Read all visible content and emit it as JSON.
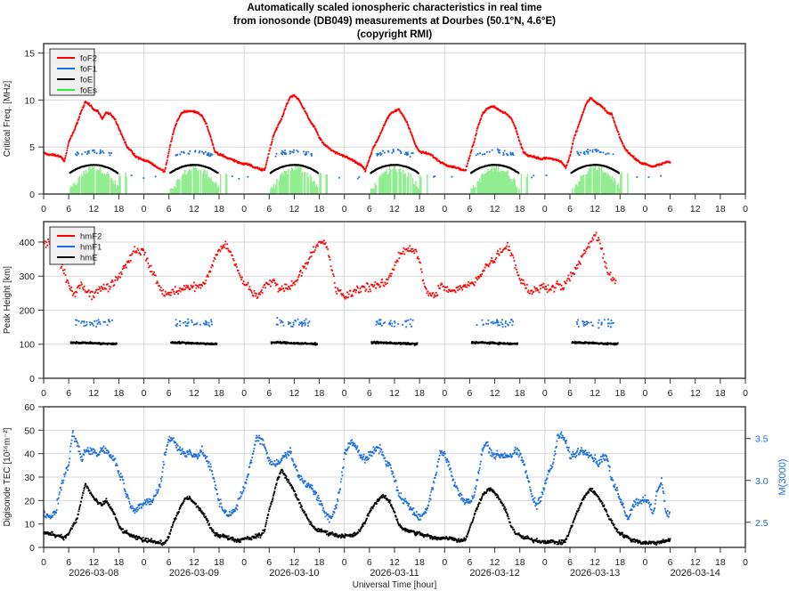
{
  "title": {
    "line1": "Automatically scaled ionospheric characteristics in real time",
    "line2": "from ionosonde (DB049) measurements at Dourbes (50.1°N, 4.6°E)",
    "line3": "(copyright RMI)"
  },
  "chart_data": [
    {
      "type": "scatter",
      "panel": "critical-frequency",
      "ylabel": "Critical Freq. [MHz]",
      "ylim": [
        0,
        16
      ],
      "yticks": [
        0,
        5,
        10,
        15
      ],
      "grid": true,
      "legend": "top-left",
      "xticks": [
        "0",
        "6",
        "12",
        "18",
        "0",
        "6",
        "12",
        "18",
        "0",
        "6",
        "12",
        "18",
        "0",
        "6",
        "12",
        "18",
        "0",
        "6",
        "12",
        "18",
        "0",
        "6",
        "12",
        "18",
        "0",
        "6",
        "12",
        "18",
        "0"
      ],
      "x_unit": "hour of day",
      "days": 7,
      "series": [
        {
          "name": "foF2",
          "color": "#ff0000",
          "kind": "points",
          "hourly": [
            [
              4.4,
              4.2,
              4.2,
              4.1,
              4.0,
              3.5,
              5.5,
              6.5,
              7.5,
              8.8,
              9.8,
              9.5,
              9.0,
              8.8,
              8.0,
              8.7,
              8.5,
              8.0,
              7.0,
              6.0,
              5.0,
              4.6,
              4.0,
              3.8
            ],
            [
              3.6,
              3.5,
              3.2,
              2.9,
              2.6,
              2.4,
              4.5,
              6.5,
              7.8,
              8.6,
              8.8,
              8.8,
              8.8,
              8.6,
              8.3,
              7.4,
              6.0,
              4.5,
              4.2,
              4.1,
              3.8,
              3.7,
              3.5,
              3.3
            ],
            [
              3.2,
              3.2,
              2.9,
              2.8,
              2.6,
              2.6,
              4.5,
              6.2,
              7.2,
              8.0,
              9.3,
              10.3,
              10.5,
              10.1,
              9.3,
              8.5,
              7.6,
              7.0,
              6.0,
              5.4,
              5.0,
              4.6,
              4.4,
              4.2
            ],
            [
              4.0,
              3.8,
              3.6,
              3.3,
              3.1,
              2.5,
              3.8,
              5.0,
              5.8,
              6.8,
              7.8,
              8.5,
              8.8,
              9.0,
              8.4,
              7.6,
              6.5,
              5.2,
              4.5,
              4.4,
              4.3,
              4.1,
              3.7,
              3.4
            ],
            [
              3.2,
              3.0,
              2.9,
              2.8,
              2.6,
              2.5,
              4.0,
              5.5,
              7.2,
              8.5,
              9.0,
              9.3,
              9.3,
              8.9,
              8.7,
              8.5,
              8.0,
              7.0,
              5.5,
              4.4,
              4.1,
              4.0,
              3.9,
              3.7
            ],
            [
              3.8,
              3.8,
              3.7,
              3.6,
              3.4,
              2.8,
              4.0,
              6.0,
              7.2,
              8.5,
              9.7,
              10.2,
              9.8,
              9.5,
              9.2,
              8.6,
              8.5,
              7.2,
              6.0,
              5.0,
              4.4,
              4.0,
              3.6,
              3.3
            ],
            [
              3.2,
              3.0,
              2.9,
              3.1,
              3.2,
              3.4,
              null,
              null,
              null,
              null,
              null,
              null,
              null,
              null,
              null,
              null,
              null,
              null,
              null,
              null,
              null,
              null,
              null,
              null
            ]
          ]
        },
        {
          "name": "foF1",
          "color": "#1a6fe0",
          "kind": "points",
          "day_hours": [
            7.5,
            16.5
          ],
          "peak": 4.6,
          "spread": 0.35
        },
        {
          "name": "foE",
          "color": "#000000",
          "kind": "points",
          "day_hours": [
            6.3,
            17.8
          ],
          "peak": 3.1,
          "min": 1.7
        },
        {
          "name": "foEs",
          "color": "#90ee90",
          "kind": "bars",
          "day_hours": [
            6.2,
            21.0
          ],
          "level": 2.6
        }
      ]
    },
    {
      "type": "scatter",
      "panel": "peak-height",
      "ylabel": "Peak Height [km]",
      "ylim": [
        0,
        460
      ],
      "yticks": [
        0,
        100,
        200,
        300,
        400
      ],
      "grid": true,
      "legend": "top-left",
      "xticks": [
        "0",
        "6",
        "12",
        "18",
        "0",
        "6",
        "12",
        "18",
        "0",
        "6",
        "12",
        "18",
        "0",
        "6",
        "12",
        "18",
        "0",
        "6",
        "12",
        "18",
        "0",
        "6",
        "12",
        "18",
        "0",
        "6",
        "12",
        "18",
        "0"
      ],
      "series": [
        {
          "name": "hmF2",
          "color": "#ff0000",
          "kind": "points",
          "hourly": [
            [
              390,
              400,
              395,
              360,
              330,
              310,
              270,
              250,
              260,
              280,
              260,
              250,
              240,
              260,
              270,
              265,
              275,
              285,
              300,
              320,
              340,
              360,
              380,
              375
            ],
            [
              370,
              340,
              310,
              290,
              260,
              250,
              245,
              255,
              260,
              260,
              265,
              270,
              265,
              270,
              275,
              290,
              320,
              350,
              380,
              390,
              385,
              360,
              330,
              300
            ],
            [
              280,
              270,
              250,
              245,
              250,
              270,
              280,
              285,
              270,
              265,
              265,
              270,
              280,
              300,
              320,
              340,
              360,
              380,
              395,
              400,
              380,
              320,
              260,
              250
            ],
            [
              240,
              245,
              250,
              260,
              265,
              270,
              265,
              275,
              270,
              275,
              280,
              300,
              330,
              360,
              375,
              380,
              380,
              375,
              340,
              280,
              250,
              240,
              250,
              270
            ],
            [
              265,
              260,
              255,
              260,
              265,
              270,
              275,
              280,
              300,
              310,
              330,
              340,
              350,
              370,
              380,
              390,
              370,
              330,
              290,
              280,
              260,
              250,
              260,
              270
            ],
            [
              265,
              265,
              270,
              275,
              270,
              275,
              300,
              310,
              330,
              360,
              380,
              400,
              420,
              400,
              360,
              320,
              290,
              null,
              null,
              null,
              null,
              null,
              null,
              null
            ],
            [
              null,
              null,
              null,
              null,
              null,
              null,
              null,
              null,
              null,
              null,
              null,
              null,
              null,
              null,
              null,
              null,
              null,
              null,
              null,
              null,
              null,
              null,
              null,
              null
            ]
          ]
        },
        {
          "name": "hmF1",
          "color": "#1a6fe0",
          "kind": "points",
          "day_hours": [
            7.5,
            16.5
          ],
          "center": 162,
          "spread": 18
        },
        {
          "name": "hmE",
          "color": "#000000",
          "kind": "points",
          "day_hours": [
            6.5,
            17.5
          ],
          "center": 103,
          "spread": 4
        }
      ]
    },
    {
      "type": "scatter",
      "panel": "tec-m3000",
      "ylabel": "Digisonde TEC [10¹⁶m⁻²]",
      "ylim": [
        0,
        60
      ],
      "yticks": [
        0,
        10,
        20,
        30,
        40,
        50,
        60
      ],
      "y2label": "M(3000)",
      "y2lim": [
        2.2,
        3.88
      ],
      "y2ticks": [
        "2.5",
        "3.0",
        "3.5"
      ],
      "xlabel": "Universal Time [hour]",
      "xticks": [
        "0",
        "6",
        "12",
        "18",
        "0",
        "6",
        "12",
        "18",
        "0",
        "6",
        "12",
        "18",
        "0",
        "6",
        "12",
        "18",
        "0",
        "6",
        "12",
        "18",
        "0",
        "6",
        "12",
        "18",
        "0",
        "6",
        "12",
        "18",
        "0"
      ],
      "dates": [
        "2026-03-08",
        "2026-03-09",
        "2026-03-10",
        "2026-03-11",
        "2026-03-12",
        "2026-03-13",
        "2026-03-14"
      ],
      "grid": true,
      "series": [
        {
          "name": "TEC",
          "color": "#000000",
          "axis": "left",
          "kind": "points",
          "hourly": [
            [
              6,
              6,
              6,
              5,
              5,
              4,
              6,
              9,
              12,
              20,
              27,
              24,
              21,
              19,
              18,
              20,
              17,
              14,
              9,
              7,
              6,
              5,
              4,
              4
            ],
            [
              3,
              3,
              3,
              2,
              2,
              1.5,
              5,
              10,
              14,
              18,
              21,
              21,
              19,
              17,
              15,
              12,
              8,
              6,
              5,
              5,
              4,
              4,
              3,
              3
            ],
            [
              4,
              4,
              4,
              5,
              5,
              8,
              16,
              22,
              29,
              33,
              30,
              27,
              24,
              20,
              16,
              13,
              10,
              8,
              7,
              7,
              6,
              6,
              5,
              5
            ],
            [
              5,
              5,
              5,
              6,
              8,
              11,
              15,
              18,
              20,
              22,
              21,
              19,
              15,
              10,
              8,
              7,
              7,
              6,
              6,
              5,
              5,
              4,
              4,
              4
            ],
            [
              4,
              4,
              4,
              3,
              3,
              3.5,
              8,
              13,
              18,
              22,
              24,
              25,
              23,
              21,
              18,
              14,
              9,
              6,
              5,
              4,
              4,
              3,
              3,
              2.5
            ],
            [
              2.5,
              2.5,
              2.5,
              2,
              2,
              3,
              7,
              12,
              16,
              20,
              23,
              25,
              23,
              21,
              18,
              14,
              11,
              8,
              6,
              5,
              4,
              3,
              3,
              2
            ],
            [
              2,
              2,
              2,
              2,
              2.5,
              3,
              null,
              null,
              null,
              null,
              null,
              null,
              null,
              null,
              null,
              null,
              null,
              null,
              null,
              null,
              null,
              null,
              null,
              null
            ]
          ]
        },
        {
          "name": "M(3000)",
          "color": "#1a6fe0",
          "axis": "right",
          "kind": "points",
          "hourly": [
            [
              2.6,
              2.6,
              2.55,
              2.65,
              2.9,
              3.05,
              3.2,
              3.55,
              3.45,
              3.25,
              3.35,
              3.35,
              3.35,
              3.3,
              3.4,
              3.35,
              3.3,
              3.25,
              3.1,
              3.0,
              2.8,
              2.7,
              2.65,
              2.7
            ],
            [
              2.7,
              2.75,
              2.75,
              2.85,
              2.95,
              3.3,
              3.5,
              3.5,
              3.4,
              3.35,
              3.3,
              3.35,
              3.3,
              3.3,
              3.35,
              3.25,
              3.15,
              2.95,
              2.75,
              2.65,
              2.6,
              2.6,
              2.65,
              2.8
            ],
            [
              2.9,
              3.1,
              3.3,
              3.5,
              3.5,
              3.4,
              3.25,
              3.2,
              3.2,
              3.25,
              3.3,
              3.35,
              3.2,
              3.05,
              3.0,
              2.95,
              2.95,
              2.85,
              2.75,
              2.65,
              2.55,
              2.55,
              2.7,
              2.9
            ],
            [
              3.3,
              3.4,
              3.45,
              3.4,
              3.3,
              3.25,
              3.3,
              3.35,
              3.4,
              3.35,
              3.2,
              3.2,
              3.0,
              2.85,
              2.75,
              2.75,
              2.65,
              2.6,
              2.55,
              2.6,
              2.7,
              2.9,
              3.1,
              3.35
            ],
            [
              3.3,
              3.2,
              3.0,
              2.9,
              2.8,
              2.75,
              2.75,
              2.8,
              3.05,
              3.35,
              3.45,
              3.35,
              3.3,
              3.3,
              3.3,
              3.3,
              3.3,
              3.35,
              3.3,
              3.2,
              3.0,
              2.8,
              2.7,
              2.8
            ],
            [
              2.95,
              3.1,
              3.2,
              3.5,
              3.55,
              3.45,
              3.3,
              3.3,
              3.35,
              3.35,
              3.35,
              3.3,
              3.25,
              3.2,
              3.3,
              3.25,
              3.0,
              2.9,
              2.8,
              2.65,
              2.55,
              2.7,
              2.75,
              2.75
            ],
            [
              2.8,
              2.7,
              2.6,
              2.9,
              3.0,
              2.6,
              null,
              null,
              null,
              null,
              null,
              null,
              null,
              null,
              null,
              null,
              null,
              null,
              null,
              null,
              null,
              null,
              null,
              null
            ]
          ]
        }
      ]
    }
  ]
}
